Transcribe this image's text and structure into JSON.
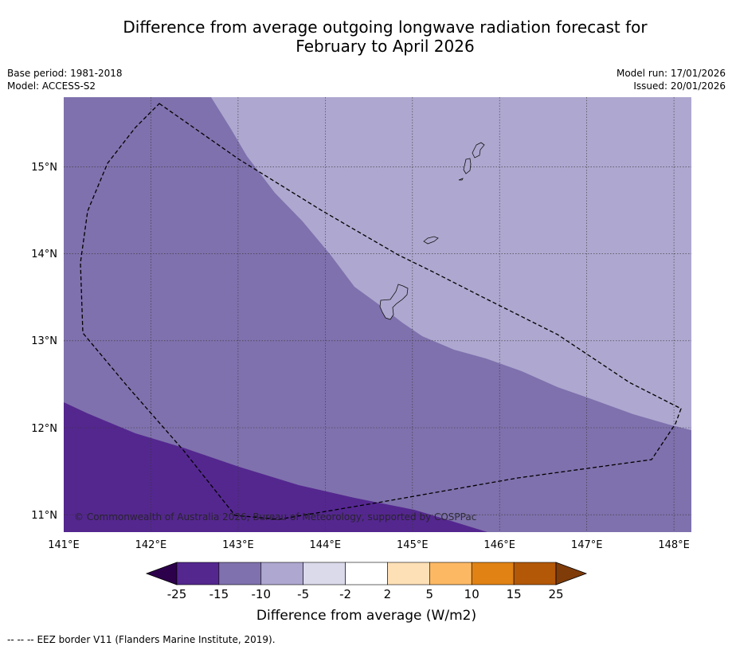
{
  "title": {
    "line1": "Difference from average outgoing longwave radiation forecast for",
    "line2": "February to April 2026"
  },
  "meta": {
    "base_period": "Base period: 1981-2018",
    "model": "Model: ACCESS-S2",
    "model_run": "Model run: 17/01/2026",
    "issued": "Issued: 20/01/2026"
  },
  "map": {
    "lon_range": [
      141.0,
      148.2
    ],
    "lat_range": [
      10.8,
      15.8
    ],
    "lon_ticks": [
      "141°E",
      "142°E",
      "143°E",
      "144°E",
      "145°E",
      "146°E",
      "147°E",
      "148°E"
    ],
    "lat_ticks": [
      "15°N",
      "14°N",
      "13°N",
      "12°N",
      "11°N"
    ],
    "copyright": "© Commonwealth of Australia 2026, Bureau of Meteorology, supported by COSPPac",
    "region_colors": {
      "minus_25_to_15": "#54278f",
      "minus_15_to_10": "#7f71ad",
      "minus_10_to_5": "#aea8d0"
    }
  },
  "colorbar": {
    "label": "Difference from average (W/m2)",
    "ticks": [
      "-25",
      "-15",
      "-10",
      "-5",
      "-2",
      "2",
      "5",
      "10",
      "15",
      "25"
    ],
    "colors": [
      "#54278f",
      "#7f71ad",
      "#aea8d0",
      "#dadaeb",
      "#ffffff",
      "#fee0b6",
      "#fdb863",
      "#e08214",
      "#b35806"
    ],
    "under_color": "#2d004b",
    "over_color": "#7f3b08"
  },
  "footer": {
    "legend_symbol": "--  --  --",
    "legend_text": "EEZ border V11 (Flanders Marine Institute, 2019)."
  }
}
